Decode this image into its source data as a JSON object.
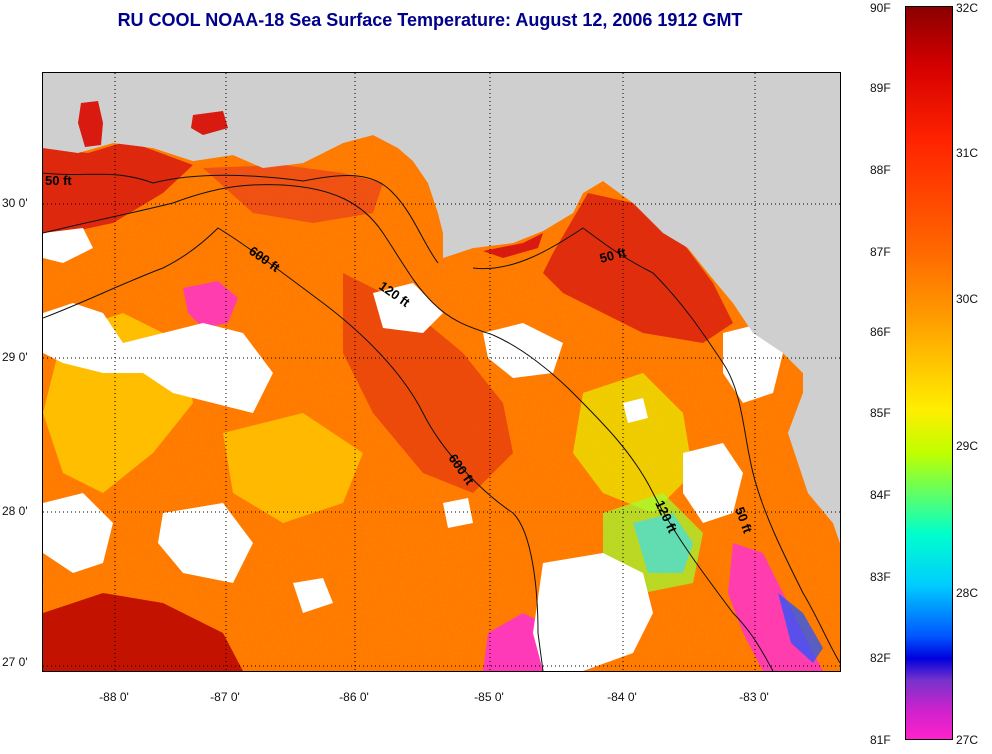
{
  "title": "RU COOL  NOAA-18  Sea Surface Temperature:  August 12, 2006 1912 GMT",
  "latitude_labels": [
    "30 0'",
    "29 0'",
    "28 0'",
    "27 0'"
  ],
  "longitude_labels": [
    "-88 0'",
    "-87 0'",
    "-86 0'",
    "-85 0'",
    "-84 0'",
    "-83 0'"
  ],
  "colorbar": {
    "fahrenheit": [
      "90F",
      "89F",
      "88F",
      "87F",
      "86F",
      "85F",
      "84F",
      "83F",
      "82F",
      "81F"
    ],
    "celsius": [
      "32C",
      "31C",
      "30C",
      "29C",
      "28C",
      "27C"
    ]
  },
  "contours": {
    "label_50_west": "50 ft",
    "label_600_north": "600 ft",
    "label_120_north": "120 ft",
    "label_50_east": "50 ft",
    "label_600_south": "600 ft",
    "label_120_south": "120 ft",
    "label_50_south": "50 ft"
  },
  "colors": {
    "land": "#cfcfcf",
    "cloud": "#ffffff",
    "warm_red": "#d81a10",
    "orange": "#ff8a00",
    "yellow": "#ffd400",
    "cool_magenta": "#ff33cc",
    "title": "#00008b"
  }
}
